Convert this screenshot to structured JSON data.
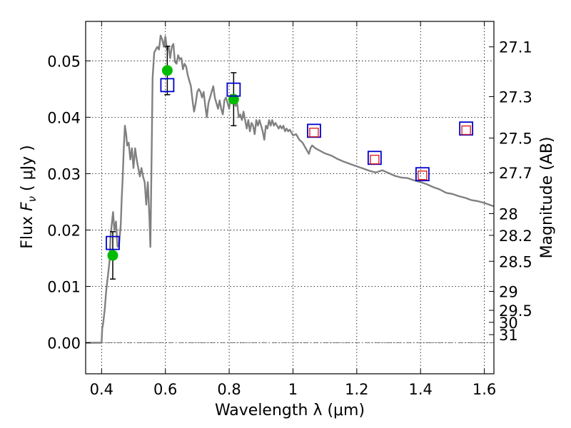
{
  "chart_data": {
    "type": "scatter",
    "xlabel": "Wavelength  λ (μm)",
    "ylabel": "Flux  F_ν  ( μJy )",
    "ylabel_parts": {
      "prefix": "Flux  ",
      "symbol": "F",
      "subscript": "ν",
      "unit": "  ( μJy )"
    },
    "ylabel_right": "Magnitude (AB)",
    "xlim": [
      0.35,
      1.63
    ],
    "ylim": [
      -0.0055,
      0.057
    ],
    "grid": true,
    "x_ticks": [
      {
        "value": 0.4,
        "label": "0.4"
      },
      {
        "value": 0.6,
        "label": "0.6"
      },
      {
        "value": 0.8,
        "label": "0.8"
      },
      {
        "value": 1.0,
        "label": "1"
      },
      {
        "value": 1.2,
        "label": "1.2"
      },
      {
        "value": 1.4,
        "label": "1.4"
      },
      {
        "value": 1.6,
        "label": "1.6"
      }
    ],
    "y_ticks": [
      {
        "value": 0.0,
        "label": "0.00"
      },
      {
        "value": 0.01,
        "label": "0.01"
      },
      {
        "value": 0.02,
        "label": "0.02"
      },
      {
        "value": 0.03,
        "label": "0.03"
      },
      {
        "value": 0.04,
        "label": "0.04"
      },
      {
        "value": 0.05,
        "label": "0.05"
      }
    ],
    "mag_ticks": [
      {
        "value": 27.1,
        "label": "27.1"
      },
      {
        "value": 27.3,
        "label": "27.3"
      },
      {
        "value": 27.5,
        "label": "27.5"
      },
      {
        "value": 27.7,
        "label": "27.7"
      },
      {
        "value": 28.0,
        "label": "28"
      },
      {
        "value": 28.2,
        "label": "28.2"
      },
      {
        "value": 28.5,
        "label": "28.5"
      },
      {
        "value": 29.0,
        "label": "29"
      },
      {
        "value": 29.5,
        "label": "29.5"
      },
      {
        "value": 30.0,
        "label": "30"
      },
      {
        "value": 31.0,
        "label": "31"
      }
    ],
    "series": [
      {
        "kind": "line",
        "color": "#808080",
        "points": [
          [
            0.35,
            0.0
          ],
          [
            0.4,
            0.0
          ],
          [
            0.402,
            0.0025
          ],
          [
            0.405,
            0.0035
          ],
          [
            0.41,
            0.006
          ],
          [
            0.415,
            0.0095
          ],
          [
            0.42,
            0.012
          ],
          [
            0.425,
            0.0145
          ],
          [
            0.428,
            0.019
          ],
          [
            0.432,
            0.021
          ],
          [
            0.436,
            0.0232
          ],
          [
            0.44,
            0.02
          ],
          [
            0.445,
            0.0215
          ],
          [
            0.45,
            0.017
          ],
          [
            0.455,
            0.0175
          ],
          [
            0.46,
            0.021
          ],
          [
            0.463,
            0.0255
          ],
          [
            0.466,
            0.029
          ],
          [
            0.47,
            0.035
          ],
          [
            0.473,
            0.0385
          ],
          [
            0.477,
            0.037
          ],
          [
            0.48,
            0.035
          ],
          [
            0.485,
            0.0355
          ],
          [
            0.49,
            0.0325
          ],
          [
            0.495,
            0.0345
          ],
          [
            0.5,
            0.031
          ],
          [
            0.505,
            0.0345
          ],
          [
            0.51,
            0.0325
          ],
          [
            0.515,
            0.031
          ],
          [
            0.52,
            0.0295
          ],
          [
            0.525,
            0.031
          ],
          [
            0.53,
            0.0295
          ],
          [
            0.535,
            0.0285
          ],
          [
            0.54,
            0.0245
          ],
          [
            0.545,
            0.0285
          ],
          [
            0.55,
            0.022
          ],
          [
            0.553,
            0.017
          ],
          [
            0.556,
            0.03
          ],
          [
            0.56,
            0.047
          ],
          [
            0.565,
            0.0515
          ],
          [
            0.57,
            0.052
          ],
          [
            0.575,
            0.0525
          ],
          [
            0.58,
            0.052
          ],
          [
            0.585,
            0.0545
          ],
          [
            0.59,
            0.0538
          ],
          [
            0.595,
            0.0525
          ],
          [
            0.6,
            0.0543
          ],
          [
            0.605,
            0.052
          ],
          [
            0.61,
            0.0525
          ],
          [
            0.615,
            0.0505
          ],
          [
            0.62,
            0.0525
          ],
          [
            0.625,
            0.053
          ],
          [
            0.63,
            0.0498
          ],
          [
            0.635,
            0.0495
          ],
          [
            0.64,
            0.051
          ],
          [
            0.645,
            0.0503
          ],
          [
            0.65,
            0.0505
          ],
          [
            0.655,
            0.0485
          ],
          [
            0.66,
            0.0495
          ],
          [
            0.665,
            0.049
          ],
          [
            0.67,
            0.0475
          ],
          [
            0.675,
            0.0465
          ],
          [
            0.68,
            0.0455
          ],
          [
            0.685,
            0.043
          ],
          [
            0.69,
            0.041
          ],
          [
            0.695,
            0.0425
          ],
          [
            0.7,
            0.0445
          ],
          [
            0.705,
            0.045
          ],
          [
            0.71,
            0.0445
          ],
          [
            0.715,
            0.0435
          ],
          [
            0.72,
            0.0445
          ],
          [
            0.725,
            0.042
          ],
          [
            0.73,
            0.04
          ],
          [
            0.735,
            0.0425
          ],
          [
            0.74,
            0.0435
          ],
          [
            0.745,
            0.0445
          ],
          [
            0.75,
            0.0455
          ],
          [
            0.755,
            0.0435
          ],
          [
            0.76,
            0.0425
          ],
          [
            0.765,
            0.0415
          ],
          [
            0.77,
            0.043
          ],
          [
            0.775,
            0.0415
          ],
          [
            0.78,
            0.0405
          ],
          [
            0.785,
            0.043
          ],
          [
            0.79,
            0.0435
          ],
          [
            0.795,
            0.0425
          ],
          [
            0.8,
            0.0415
          ],
          [
            0.805,
            0.044
          ],
          [
            0.81,
            0.0435
          ],
          [
            0.815,
            0.043
          ],
          [
            0.82,
            0.042
          ],
          [
            0.825,
            0.0425
          ],
          [
            0.83,
            0.04
          ],
          [
            0.835,
            0.0405
          ],
          [
            0.84,
            0.0395
          ],
          [
            0.845,
            0.041
          ],
          [
            0.85,
            0.0395
          ],
          [
            0.855,
            0.038
          ],
          [
            0.86,
            0.0395
          ],
          [
            0.865,
            0.0375
          ],
          [
            0.87,
            0.039
          ],
          [
            0.875,
            0.0385
          ],
          [
            0.88,
            0.037
          ],
          [
            0.885,
            0.0395
          ],
          [
            0.89,
            0.0385
          ],
          [
            0.895,
            0.0395
          ],
          [
            0.9,
            0.0385
          ],
          [
            0.905,
            0.0375
          ],
          [
            0.91,
            0.036
          ],
          [
            0.915,
            0.0385
          ],
          [
            0.92,
            0.038
          ],
          [
            0.925,
            0.0395
          ],
          [
            0.93,
            0.0385
          ],
          [
            0.935,
            0.0395
          ],
          [
            0.94,
            0.0385
          ],
          [
            0.945,
            0.039
          ],
          [
            0.95,
            0.0385
          ],
          [
            0.955,
            0.038
          ],
          [
            0.96,
            0.0385
          ],
          [
            0.965,
            0.038
          ],
          [
            0.97,
            0.0385
          ],
          [
            0.975,
            0.0375
          ],
          [
            0.98,
            0.038
          ],
          [
            0.985,
            0.0375
          ],
          [
            0.99,
            0.0378
          ],
          [
            1.0,
            0.0368
          ],
          [
            1.01,
            0.037
          ],
          [
            1.02,
            0.036
          ],
          [
            1.03,
            0.0355
          ],
          [
            1.04,
            0.0345
          ],
          [
            1.05,
            0.0335
          ],
          [
            1.055,
            0.0345
          ],
          [
            1.06,
            0.035
          ],
          [
            1.07,
            0.0345
          ],
          [
            1.08,
            0.0342
          ],
          [
            1.1,
            0.0336
          ],
          [
            1.12,
            0.0332
          ],
          [
            1.14,
            0.0326
          ],
          [
            1.16,
            0.0321
          ],
          [
            1.18,
            0.0317
          ],
          [
            1.2,
            0.0313
          ],
          [
            1.22,
            0.0309
          ],
          [
            1.24,
            0.0305
          ],
          [
            1.26,
            0.0302
          ],
          [
            1.28,
            0.0306
          ],
          [
            1.3,
            0.0301
          ],
          [
            1.32,
            0.0296
          ],
          [
            1.34,
            0.0293
          ],
          [
            1.36,
            0.0292
          ],
          [
            1.38,
            0.0288
          ],
          [
            1.4,
            0.0285
          ],
          [
            1.42,
            0.0281
          ],
          [
            1.44,
            0.0276
          ],
          [
            1.46,
            0.0272
          ],
          [
            1.48,
            0.0266
          ],
          [
            1.5,
            0.0264
          ],
          [
            1.52,
            0.026
          ],
          [
            1.54,
            0.0257
          ],
          [
            1.56,
            0.0253
          ],
          [
            1.58,
            0.0251
          ],
          [
            1.6,
            0.0248
          ],
          [
            1.63,
            0.0242
          ]
        ]
      },
      {
        "kind": "points",
        "marker": "circle",
        "color": "#00bb00",
        "points": [
          {
            "x": 0.435,
            "y": 0.0155,
            "err": 0.0042
          },
          {
            "x": 0.606,
            "y": 0.0483,
            "err": 0.0043
          },
          {
            "x": 0.814,
            "y": 0.0432,
            "err": 0.0047
          }
        ]
      },
      {
        "kind": "points",
        "marker": "square",
        "color": "#0000cc",
        "points": [
          {
            "x": 0.435,
            "y": 0.0177
          },
          {
            "x": 0.606,
            "y": 0.0457
          },
          {
            "x": 0.814,
            "y": 0.0449
          },
          {
            "x": 1.066,
            "y": 0.0376
          },
          {
            "x": 1.256,
            "y": 0.0328
          },
          {
            "x": 1.406,
            "y": 0.0299
          },
          {
            "x": 1.543,
            "y": 0.038
          }
        ]
      },
      {
        "kind": "points",
        "marker": "square",
        "color": "#dd2222",
        "points": [
          {
            "x": 1.066,
            "y": 0.0373
          },
          {
            "x": 1.256,
            "y": 0.0325
          },
          {
            "x": 1.406,
            "y": 0.0297
          },
          {
            "x": 1.543,
            "y": 0.0377
          }
        ]
      }
    ]
  }
}
